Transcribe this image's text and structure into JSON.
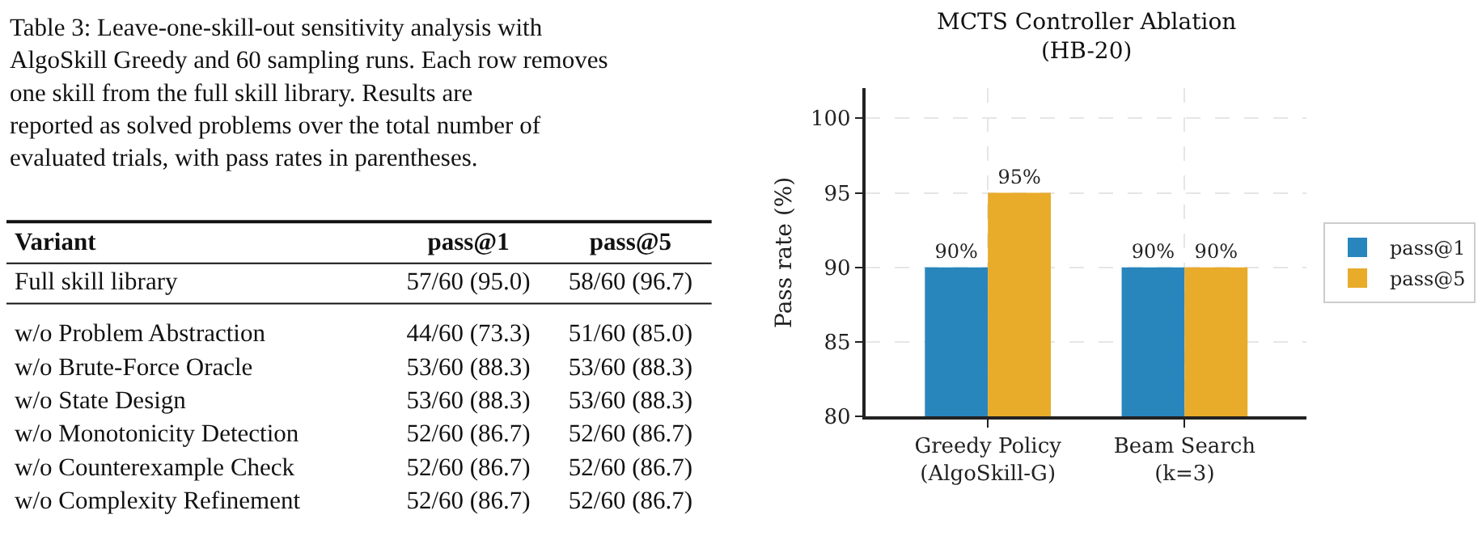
{
  "chart_data": [
    {
      "type": "heatmap",
      "title": "Table 3: Leave-one-skill-out sensitivity analysis with AlgoSkill Greedy and 60 sampling runs. Each row removes one skill from the full skill library. Results are reported as solved problems over the total number of evaluated trials, with pass rates in parentheses.",
      "ylabel": "Variant",
      "categories": [
        "pass@1",
        "pass@5"
      ],
      "y_categories": [
        "Full skill library",
        "w/o Problem Abstraction",
        "w/o Brute-Force Oracle",
        "w/o State Design",
        "w/o Monotonicity Detection",
        "w/o Counterexample Check",
        "w/o Complexity Refinement"
      ],
      "cells": [
        [
          null,
          null
        ],
        [
          null,
          null
        ],
        [
          null,
          null
        ],
        [
          null,
          null
        ],
        [
          null,
          null
        ],
        [
          null,
          null
        ],
        [
          null,
          null
        ]
      ],
      "cell_labels": [
        [
          "57/60 (95.0)",
          "58/60 (96.7)"
        ],
        [
          "44/60 (73.3)",
          "51/60 (85.0)"
        ],
        [
          "53/60 (88.3)",
          "53/60 (88.3)"
        ],
        [
          "53/60 (88.3)",
          "53/60 (88.3)"
        ],
        [
          "52/60 (86.7)",
          "52/60 (86.7)"
        ],
        [
          "52/60 (86.7)",
          "52/60 (86.7)"
        ],
        [
          "52/60 (86.7)",
          "52/60 (86.7)"
        ]
      ]
    },
    {
      "type": "bar",
      "title": "MCTS Controller Ablation",
      "subtitle": "(HB-20)",
      "ylabel": "Pass rate (%)",
      "categories": [
        "Greedy Policy\n(AlgoSkill-G)",
        "Beam Search\n(k=3)"
      ],
      "series": [
        {
          "name": "pass@1",
          "color": "#2986bd",
          "values": [
            90,
            90
          ],
          "value_labels": [
            "90%",
            "90%"
          ]
        },
        {
          "name": "pass@5",
          "color": "#e8ab2a",
          "values": [
            95,
            90
          ],
          "value_labels": [
            "95%",
            "90%"
          ]
        }
      ],
      "ylim": [
        80,
        102
      ],
      "yticks": [
        80,
        85,
        90,
        95,
        100
      ],
      "grid": true,
      "legend": "right"
    }
  ]
}
